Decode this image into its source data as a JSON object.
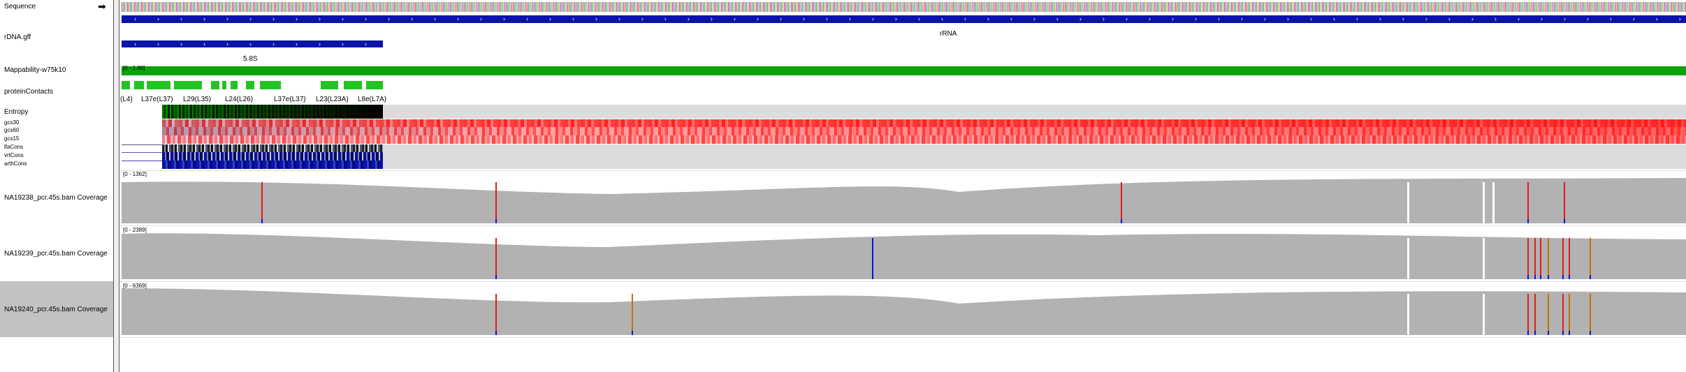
{
  "tracks": {
    "sequence": "Sequence",
    "rdna": "rDNA.gff",
    "mappability": "Mappability-w75k10",
    "protein_contacts": "proteinContacts",
    "entropy": "Entropy",
    "gcs30": "gcs30",
    "gcs60": "gcs60",
    "gcs15": "gcs15",
    "lfa_cons": "lfaCons",
    "vrt_cons": "vrtCons",
    "arth_cons": "arthCons",
    "cov1": "NA19238_pcr.45s.bam Coverage",
    "cov2": "NA19239_pcr.45s.bam Coverage",
    "cov3": "NA19240_pcr.45s.bam Coverage"
  },
  "features": {
    "rrna_label": "rRNA",
    "s58_label": "5.8S",
    "mappability_range": "[0 - 1.00]",
    "cov1_range": "[0 - 1362]",
    "cov2_range": "[0 - 2389]",
    "cov3_range": "[0 - 6369]"
  },
  "protein_labels": [
    "(L4)",
    "L37e(L37)",
    "L29(L35)",
    "L24(L26)",
    "L37e(L37)",
    "L23(L23A)",
    "L8e(L7A)"
  ],
  "icons": {
    "expand": "right-arrow-icon"
  },
  "colors": {
    "feature_blue": "#0a14a8",
    "mappability_green": "#0ca30c",
    "contact_green": "#21c421",
    "coverage_gray": "#b2b2b2",
    "mismatch_red": "#e11b1b",
    "mismatch_orange": "#c86d0b",
    "mismatch_blue": "#1111d0",
    "selected_row": "#c2c2c2"
  }
}
